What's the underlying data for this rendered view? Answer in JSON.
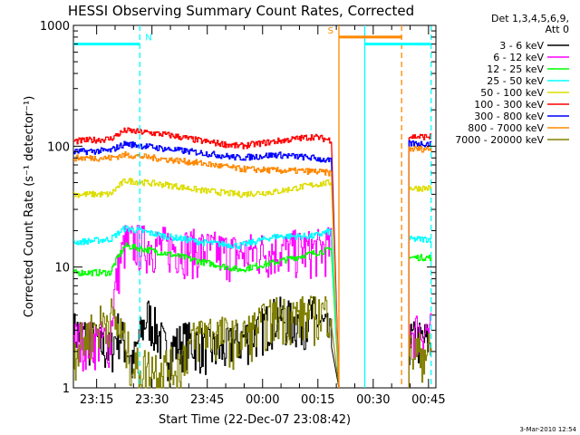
{
  "chart_data": {
    "type": "line",
    "title": "HESSI Observing Summary Count Rates, Corrected",
    "xlabel": "Start Time (22-Dec-07 23:08:42)",
    "ylabel": "Corrected Count Rate (s⁻¹ detector⁻¹)",
    "yscale": "log",
    "ylim": [
      1,
      1000
    ],
    "xlim": [
      "23:08:42",
      "00:47:00"
    ],
    "y_ticks": [
      {
        "value": 1,
        "label": "1"
      },
      {
        "value": 10,
        "label": "10"
      },
      {
        "value": 100,
        "label": "100"
      },
      {
        "value": 1000,
        "label": "1000"
      }
    ],
    "x_ticks": [
      {
        "minutes": 6.3,
        "label": "23:15"
      },
      {
        "minutes": 21.3,
        "label": "23:30"
      },
      {
        "minutes": 36.3,
        "label": "23:45"
      },
      {
        "minutes": 51.3,
        "label": "00:00"
      },
      {
        "minutes": 66.3,
        "label": "00:15"
      },
      {
        "minutes": 81.3,
        "label": "00:30"
      },
      {
        "minutes": 96.3,
        "label": "00:45"
      }
    ],
    "legend_header": [
      "Det 1,3,4,5,6,9,",
      "Att 0"
    ],
    "legend_position": "right",
    "series": [
      {
        "name": "3 - 6 keV",
        "color": "#000000",
        "points": [
          [
            0,
            3
          ],
          [
            10,
            2
          ],
          [
            12,
            3
          ],
          [
            16,
            1.5
          ],
          [
            20,
            4
          ],
          [
            25,
            2
          ],
          [
            30,
            2.5
          ],
          [
            40,
            2
          ],
          [
            50,
            3
          ],
          [
            55,
            4
          ],
          [
            60,
            3.5
          ],
          [
            65,
            4
          ],
          [
            70,
            2.5
          ],
          [
            72,
            1
          ]
        ]
      },
      {
        "name": "6 - 12 keV",
        "color": "#ff00ff",
        "points": [
          [
            0,
            2.5
          ],
          [
            10,
            2.5
          ],
          [
            14,
            16
          ],
          [
            25,
            15
          ],
          [
            35,
            14
          ],
          [
            45,
            13
          ],
          [
            55,
            14
          ],
          [
            65,
            14
          ],
          [
            70,
            15
          ],
          [
            72,
            1
          ]
        ]
      },
      {
        "name": "12 - 25 keV",
        "color": "#00ff00",
        "points": [
          [
            0,
            9
          ],
          [
            10,
            9
          ],
          [
            14,
            15
          ],
          [
            25,
            13
          ],
          [
            35,
            11
          ],
          [
            45,
            9.5
          ],
          [
            55,
            11
          ],
          [
            65,
            13
          ],
          [
            70,
            14
          ],
          [
            72,
            1
          ]
        ]
      },
      {
        "name": "25 - 50 keV",
        "color": "#00ffff",
        "points": [
          [
            0,
            16
          ],
          [
            10,
            17
          ],
          [
            14,
            21
          ],
          [
            25,
            18
          ],
          [
            35,
            16
          ],
          [
            45,
            15
          ],
          [
            55,
            18
          ],
          [
            65,
            18
          ],
          [
            70,
            20
          ],
          [
            72,
            1
          ]
        ]
      },
      {
        "name": "50 - 100 keV",
        "color": "#dddd00",
        "points": [
          [
            0,
            40
          ],
          [
            10,
            40
          ],
          [
            14,
            52
          ],
          [
            25,
            48
          ],
          [
            35,
            43
          ],
          [
            45,
            40
          ],
          [
            55,
            42
          ],
          [
            65,
            48
          ],
          [
            70,
            50
          ],
          [
            72,
            1
          ]
        ]
      },
      {
        "name": "100 - 300 keV",
        "color": "#ff0000",
        "points": [
          [
            0,
            110
          ],
          [
            10,
            115
          ],
          [
            14,
            135
          ],
          [
            25,
            125
          ],
          [
            35,
            110
          ],
          [
            45,
            100
          ],
          [
            55,
            110
          ],
          [
            65,
            120
          ],
          [
            70,
            112
          ],
          [
            72,
            1
          ]
        ]
      },
      {
        "name": "300 - 800 keV",
        "color": "#0000ff",
        "points": [
          [
            0,
            90
          ],
          [
            10,
            92
          ],
          [
            14,
            105
          ],
          [
            25,
            95
          ],
          [
            35,
            88
          ],
          [
            45,
            80
          ],
          [
            55,
            85
          ],
          [
            65,
            80
          ],
          [
            70,
            75
          ],
          [
            72,
            1
          ]
        ]
      },
      {
        "name": "800 - 7000 keV",
        "color": "#ff8800",
        "points": [
          [
            0,
            80
          ],
          [
            10,
            80
          ],
          [
            14,
            85
          ],
          [
            25,
            78
          ],
          [
            35,
            72
          ],
          [
            45,
            65
          ],
          [
            55,
            63
          ],
          [
            65,
            62
          ],
          [
            70,
            60
          ],
          [
            72,
            1
          ]
        ]
      },
      {
        "name": "7000 - 20000 keV",
        "color": "#808000",
        "points": [
          [
            0,
            2
          ],
          [
            10,
            4
          ],
          [
            16,
            1.5
          ],
          [
            28,
            1.5
          ],
          [
            35,
            3
          ],
          [
            45,
            2.5
          ],
          [
            55,
            4
          ],
          [
            65,
            4
          ],
          [
            70,
            4.5
          ],
          [
            72,
            1
          ]
        ]
      }
    ],
    "late_segment": {
      "start": 91,
      "end": 97,
      "values": {
        "3 - 6 keV": 2.5,
        "6 - 12 keV": 3,
        "12 - 25 keV": 12,
        "25 - 50 keV": 17,
        "50 - 100 keV": 45,
        "100 - 300 keV": 120,
        "300 - 800 keV": 105,
        "800 - 7000 keV": 95,
        "7000 - 20000 keV": 2
      }
    },
    "flag_bars": [
      {
        "label": "N",
        "color": "#00ffff",
        "start": 0,
        "end": 18,
        "value": 700
      },
      {
        "label": "",
        "color": "#00ffff",
        "start": 79,
        "end": 97,
        "value": 700
      },
      {
        "label": "S",
        "color": "#ff8800",
        "start": 72,
        "end": 89,
        "value": 800
      }
    ],
    "vertical_markers": [
      {
        "color": "#00ffff",
        "at": 18,
        "style": "dashed"
      },
      {
        "color": "#00ffff",
        "at": 79,
        "style": "solid"
      },
      {
        "color": "#00ffff",
        "at": 97,
        "style": "dashed"
      },
      {
        "color": "#ff8800",
        "at": 72,
        "style": "solid"
      },
      {
        "color": "#ff8800",
        "at": 89,
        "style": "dashed"
      }
    ],
    "footer": "3-Mar-2010 12:54"
  }
}
